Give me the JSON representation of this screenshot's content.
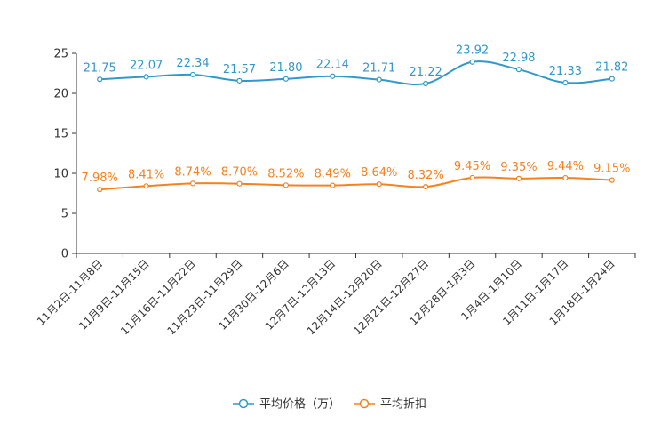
{
  "chart_data": {
    "type": "line",
    "categories": [
      "11月2日-11月8日",
      "11月9日-11月15日",
      "11月16日-11月22日",
      "11月23日-11月29日",
      "11月30日-12月6日",
      "12月7日-12月13日",
      "12月14日-12月20日",
      "12月21日-12月27日",
      "12月28日-1月3日",
      "1月4日-1月10日",
      "1月11日-1月17日",
      "1月18日-1月24日"
    ],
    "ylim": [
      0,
      25
    ],
    "yticks": [
      0,
      5,
      10,
      15,
      20,
      25
    ],
    "grid": false,
    "legend_position": "bottom-center",
    "series": [
      {
        "name": "平均价格（万）",
        "color": "#3398c9",
        "values": [
          21.75,
          22.07,
          22.34,
          21.57,
          21.8,
          22.14,
          21.71,
          21.22,
          23.92,
          22.98,
          21.33,
          21.82
        ],
        "labels": [
          "21.75",
          "22.07",
          "22.34",
          "21.57",
          "21.80",
          "22.14",
          "21.71",
          "21.22",
          "23.92",
          "22.98",
          "21.33",
          "21.82"
        ]
      },
      {
        "name": "平均折扣",
        "color": "#f5811f",
        "values": [
          7.98,
          8.41,
          8.74,
          8.7,
          8.52,
          8.49,
          8.64,
          8.32,
          9.45,
          9.35,
          9.44,
          9.15
        ],
        "labels": [
          "7.98%",
          "8.41%",
          "8.74%",
          "8.70%",
          "8.52%",
          "8.49%",
          "8.64%",
          "8.32%",
          "9.45%",
          "9.35%",
          "9.44%",
          "9.15%"
        ]
      }
    ]
  }
}
